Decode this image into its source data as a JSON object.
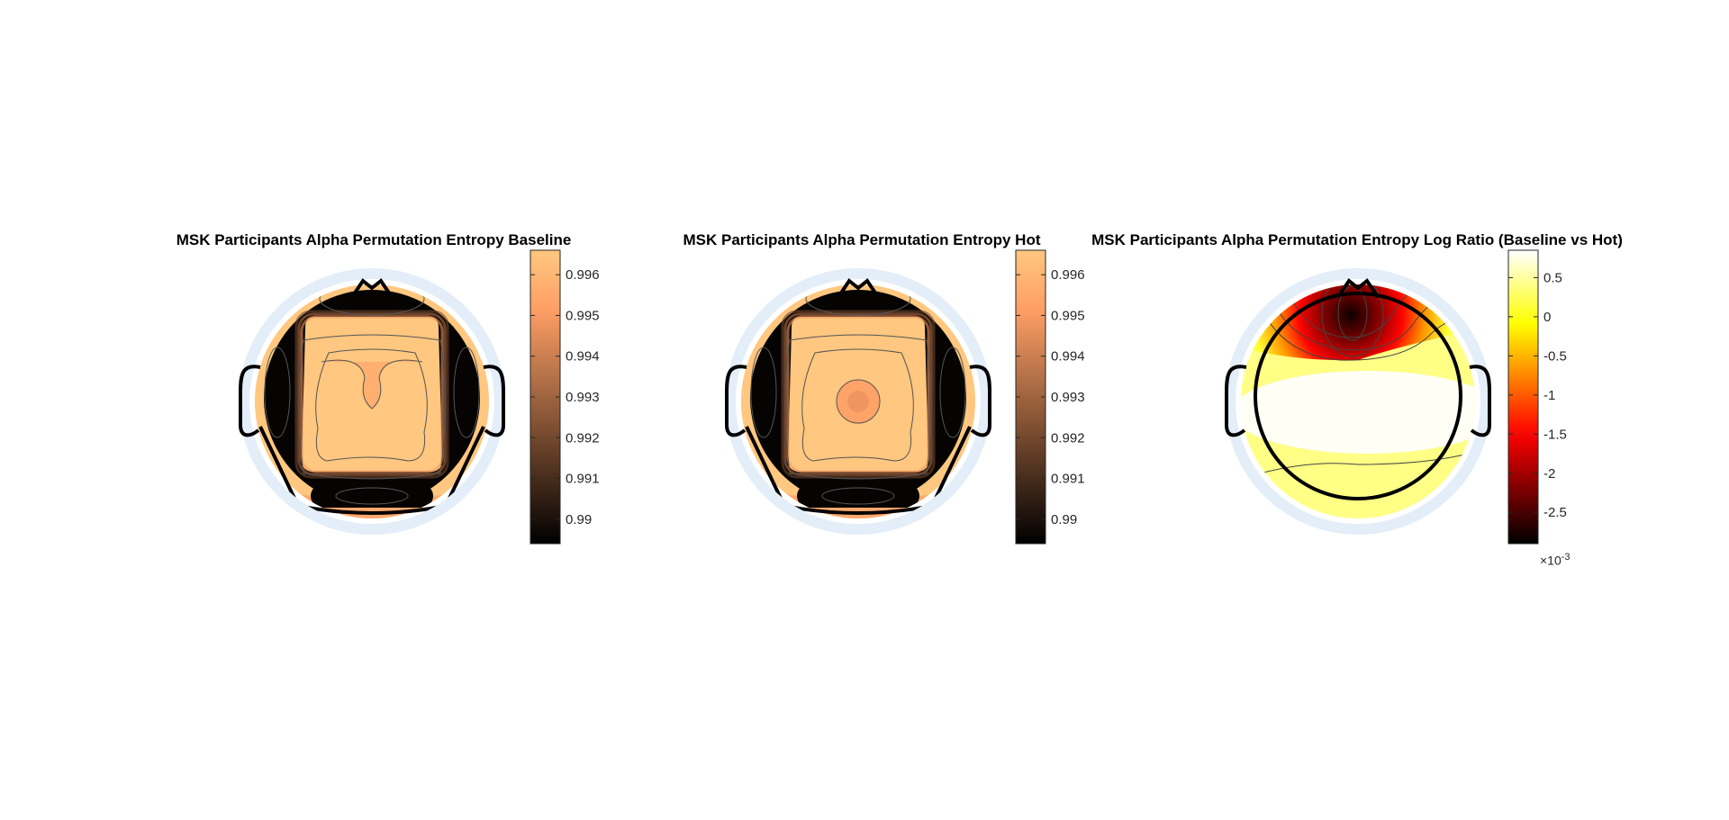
{
  "chart_data": [
    {
      "type": "heatmap",
      "title": "MSK Participants Alpha Permutation Entropy Baseline",
      "colormap": "copper",
      "colorbar_ticks": [
        0.99,
        0.991,
        0.992,
        0.993,
        0.994,
        0.995,
        0.996
      ],
      "colorbar_tick_labels": [
        "0.99",
        "0.991",
        "0.992",
        "0.993",
        "0.994",
        "0.995",
        "0.996"
      ],
      "clim": [
        0.9894,
        0.9966
      ],
      "center_shape": "notched"
    },
    {
      "type": "heatmap",
      "title": "MSK Participants Alpha Permutation Entropy Hot",
      "colormap": "copper",
      "colorbar_ticks": [
        0.99,
        0.991,
        0.992,
        0.993,
        0.994,
        0.995,
        0.996
      ],
      "colorbar_tick_labels": [
        "0.99",
        "0.991",
        "0.992",
        "0.993",
        "0.994",
        "0.995",
        "0.996"
      ],
      "clim": [
        0.9894,
        0.9966
      ],
      "center_shape": "dot"
    },
    {
      "type": "heatmap",
      "title": "MSK Participants Alpha Permutation Entropy Log Ratio (Baseline vs Hot)",
      "colormap": "hot",
      "colorbar_ticks": [
        -2.5,
        -2,
        -1.5,
        -1,
        -0.5,
        0,
        0.5
      ],
      "colorbar_tick_labels": [
        "-2.5",
        "-2",
        "-1.5",
        "-1",
        "-0.5",
        "0",
        "0.5"
      ],
      "clim": [
        -2.9,
        0.85
      ],
      "colorbar_exponent": "×10",
      "colorbar_exponent_power": "-3"
    }
  ]
}
